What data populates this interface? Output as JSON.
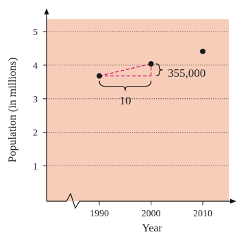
{
  "chart_data": {
    "type": "scatter",
    "xlabel": "Year",
    "ylabel": "Population (in millions)",
    "xlim": [
      1980,
      2015
    ],
    "ylim": [
      0,
      5.5
    ],
    "x_ticks": [
      "1990",
      "2000",
      "2010"
    ],
    "y_ticks": [
      "1",
      "2",
      "3",
      "4",
      "5"
    ],
    "grid": "horizontal dotted",
    "background_color": "#F7CDB9",
    "point_color": "#1a1a1a",
    "annotation_color": "#D61F7A",
    "points": [
      {
        "x": 1990,
        "y": 3.68
      },
      {
        "x": 2000,
        "y": 4.04
      },
      {
        "x": 2010,
        "y": 4.41
      }
    ],
    "annotations": {
      "rise": "355,000",
      "run": "10"
    }
  }
}
